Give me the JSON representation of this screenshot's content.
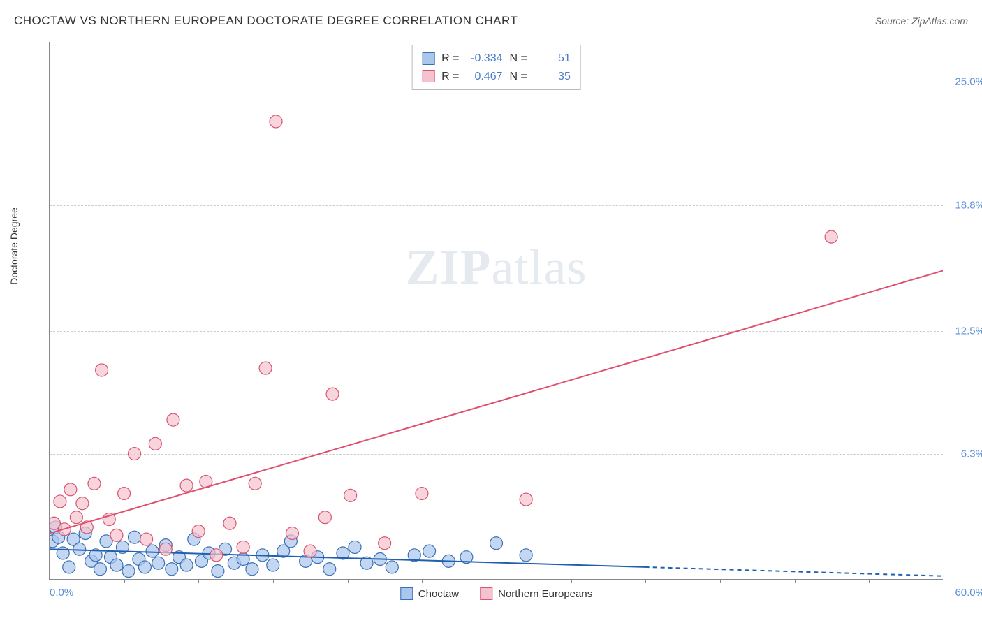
{
  "header": {
    "title": "CHOCTAW VS NORTHERN EUROPEAN DOCTORATE DEGREE CORRELATION CHART",
    "source_label": "Source:",
    "source_value": "ZipAtlas.com"
  },
  "chart": {
    "type": "scatter",
    "y_axis_label": "Doctorate Degree",
    "xlim": [
      0,
      60
    ],
    "ylim": [
      0,
      27
    ],
    "x_origin_label": "0.0%",
    "x_max_label": "60.0%",
    "y_ticks": [
      {
        "value": 6.3,
        "label": "6.3%"
      },
      {
        "value": 12.5,
        "label": "12.5%"
      },
      {
        "value": 18.8,
        "label": "18.8%"
      },
      {
        "value": 25.0,
        "label": "25.0%"
      }
    ],
    "x_tick_step": 5,
    "background_color": "#ffffff",
    "grid_color": "#cccccc",
    "axis_color": "#888888",
    "tick_label_color": "#5b8fd6",
    "marker_radius": 9,
    "marker_stroke_width": 1.2,
    "line_width": 2,
    "dash_pattern": "6,5",
    "watermark_text_bold": "ZIP",
    "watermark_text_rest": "atlas",
    "series": [
      {
        "name": "Choctaw",
        "fill_color": "#a9c6ec",
        "stroke_color": "#3b6fb5",
        "line_color": "#1f5fb0",
        "r_value": "-0.334",
        "n_value": "51",
        "trend": {
          "x1": 0,
          "y1": 1.5,
          "x2": 40,
          "y2": 0.6,
          "extend_x": 60
        },
        "points": [
          [
            0.2,
            1.9
          ],
          [
            0.4,
            2.6
          ],
          [
            0.6,
            2.1
          ],
          [
            0.9,
            1.3
          ],
          [
            1.3,
            0.6
          ],
          [
            1.6,
            2.0
          ],
          [
            2.0,
            1.5
          ],
          [
            2.4,
            2.3
          ],
          [
            2.8,
            0.9
          ],
          [
            3.1,
            1.2
          ],
          [
            3.4,
            0.5
          ],
          [
            3.8,
            1.9
          ],
          [
            4.1,
            1.1
          ],
          [
            4.5,
            0.7
          ],
          [
            4.9,
            1.6
          ],
          [
            5.3,
            0.4
          ],
          [
            5.7,
            2.1
          ],
          [
            6.0,
            1.0
          ],
          [
            6.4,
            0.6
          ],
          [
            6.9,
            1.4
          ],
          [
            7.3,
            0.8
          ],
          [
            7.8,
            1.7
          ],
          [
            8.2,
            0.5
          ],
          [
            8.7,
            1.1
          ],
          [
            9.2,
            0.7
          ],
          [
            9.7,
            2.0
          ],
          [
            10.2,
            0.9
          ],
          [
            10.7,
            1.3
          ],
          [
            11.3,
            0.4
          ],
          [
            11.8,
            1.5
          ],
          [
            12.4,
            0.8
          ],
          [
            13.0,
            1.0
          ],
          [
            13.6,
            0.5
          ],
          [
            14.3,
            1.2
          ],
          [
            15.0,
            0.7
          ],
          [
            15.7,
            1.4
          ],
          [
            16.2,
            1.9
          ],
          [
            17.2,
            0.9
          ],
          [
            18.0,
            1.1
          ],
          [
            18.8,
            0.5
          ],
          [
            19.7,
            1.3
          ],
          [
            20.5,
            1.6
          ],
          [
            21.3,
            0.8
          ],
          [
            22.2,
            1.0
          ],
          [
            23.0,
            0.6
          ],
          [
            24.5,
            1.2
          ],
          [
            25.5,
            1.4
          ],
          [
            26.8,
            0.9
          ],
          [
            28.0,
            1.1
          ],
          [
            30.0,
            1.8
          ],
          [
            32.0,
            1.2
          ]
        ]
      },
      {
        "name": "Northern Europeans",
        "fill_color": "#f5c3cf",
        "stroke_color": "#d9546f",
        "line_color": "#e0506e",
        "r_value": "0.467",
        "n_value": "35",
        "trend": {
          "x1": 0,
          "y1": 2.3,
          "x2": 60,
          "y2": 15.5,
          "extend_x": 60
        },
        "points": [
          [
            0.3,
            2.8
          ],
          [
            0.7,
            3.9
          ],
          [
            1.0,
            2.5
          ],
          [
            1.4,
            4.5
          ],
          [
            1.8,
            3.1
          ],
          [
            2.2,
            3.8
          ],
          [
            2.5,
            2.6
          ],
          [
            3.0,
            4.8
          ],
          [
            3.5,
            10.5
          ],
          [
            4.0,
            3.0
          ],
          [
            4.5,
            2.2
          ],
          [
            5.0,
            4.3
          ],
          [
            5.7,
            6.3
          ],
          [
            6.5,
            2.0
          ],
          [
            7.1,
            6.8
          ],
          [
            7.8,
            1.5
          ],
          [
            8.3,
            8.0
          ],
          [
            9.2,
            4.7
          ],
          [
            10.0,
            2.4
          ],
          [
            10.5,
            4.9
          ],
          [
            11.2,
            1.2
          ],
          [
            12.1,
            2.8
          ],
          [
            13.0,
            1.6
          ],
          [
            13.8,
            4.8
          ],
          [
            14.5,
            10.6
          ],
          [
            15.2,
            23.0
          ],
          [
            16.3,
            2.3
          ],
          [
            17.5,
            1.4
          ],
          [
            18.5,
            3.1
          ],
          [
            19.0,
            9.3
          ],
          [
            20.2,
            4.2
          ],
          [
            22.5,
            1.8
          ],
          [
            25.0,
            4.3
          ],
          [
            32.0,
            4.0
          ],
          [
            52.5,
            17.2
          ]
        ]
      }
    ]
  },
  "legend_top": {
    "r_label": "R =",
    "n_label": "N ="
  },
  "legend_bottom": {
    "items": [
      "Choctaw",
      "Northern Europeans"
    ]
  }
}
